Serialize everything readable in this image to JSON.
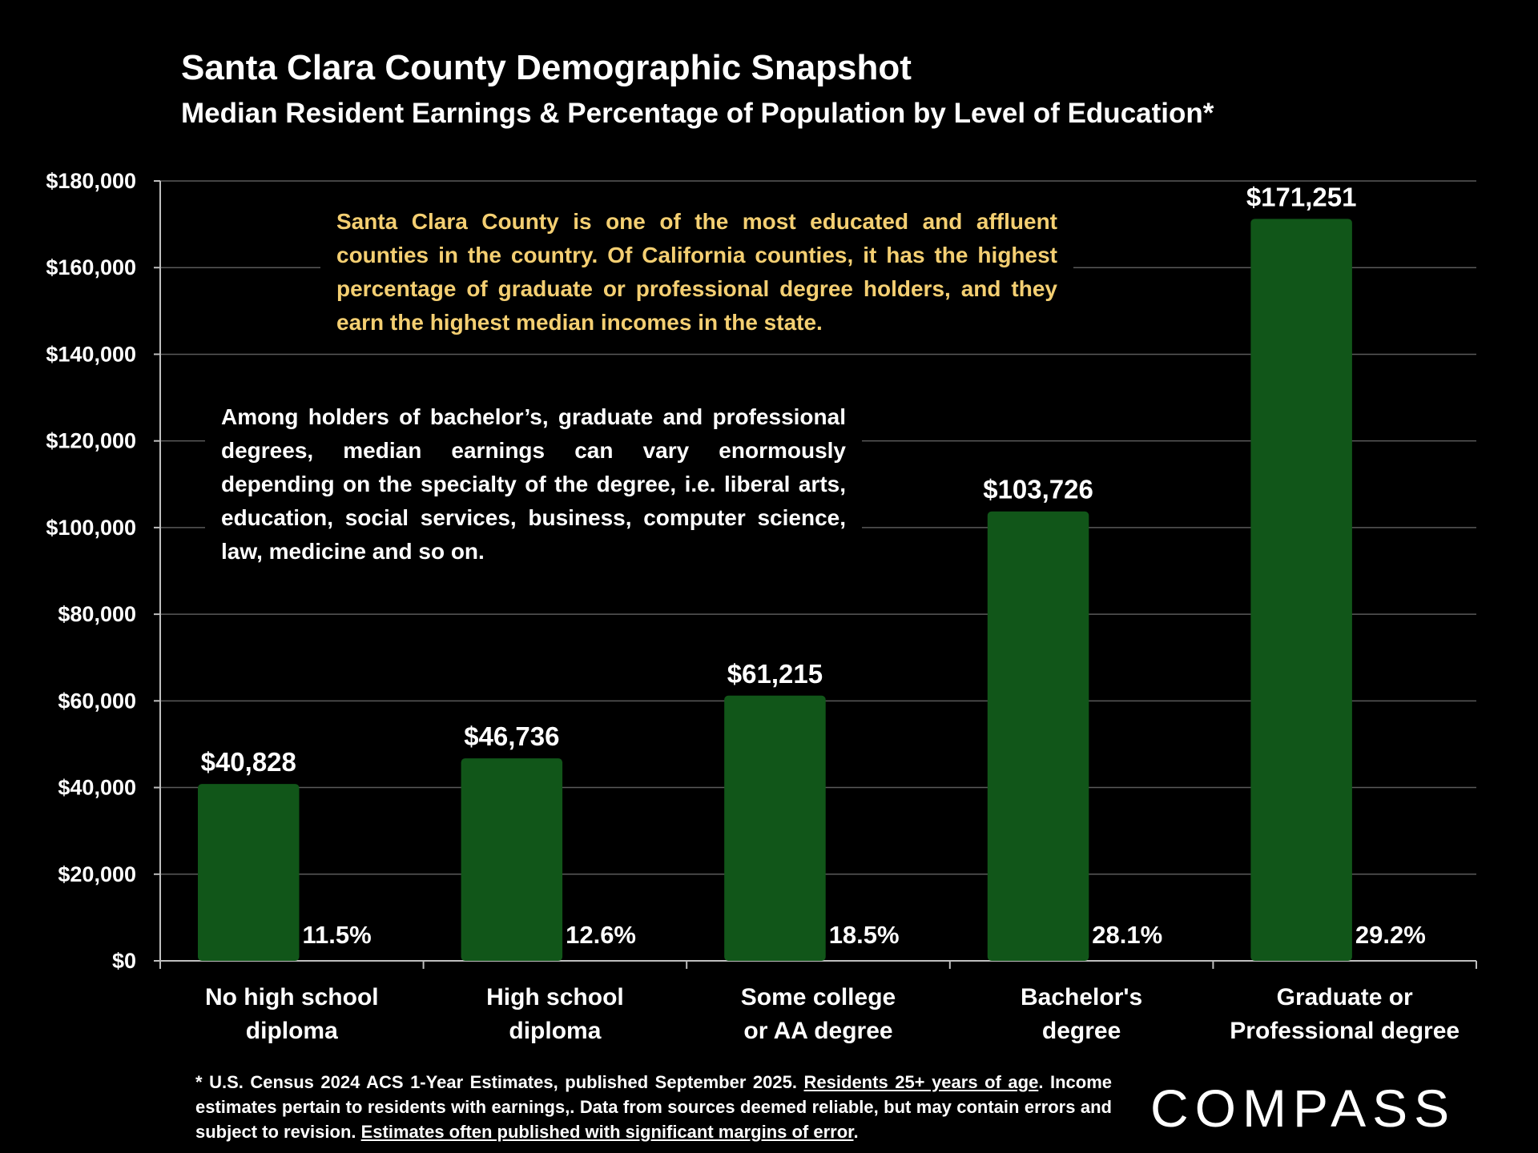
{
  "chart_data": {
    "type": "bar",
    "title": "Santa Clara County Demographic Snapshot",
    "subtitle": "Median Resident Earnings & Percentage of Population by Level of Education*",
    "categories": [
      [
        "No high school",
        "diploma"
      ],
      [
        "High school",
        "diploma"
      ],
      [
        "Some college",
        "or AA degree"
      ],
      [
        "Bachelor's",
        "degree"
      ],
      [
        "Graduate or",
        "Professional degree"
      ]
    ],
    "series": [
      {
        "name": "Median Resident Earnings",
        "values": [
          40828,
          46736,
          61215,
          103726,
          171251
        ],
        "labels": [
          "$40,828",
          "$46,736",
          "$61,215",
          "$103,726",
          "$171,251"
        ]
      },
      {
        "name": "Percentage of Population",
        "values": [
          11.5,
          12.6,
          18.5,
          28.1,
          29.2
        ],
        "labels": [
          "11.5%",
          "12.6%",
          "18.5%",
          "28.1%",
          "29.2%"
        ]
      }
    ],
    "y_ticks": [
      "$0",
      "$20,000",
      "$40,000",
      "$60,000",
      "$80,000",
      "$100,000",
      "$120,000",
      "$140,000",
      "$160,000",
      "$180,000"
    ],
    "ylim": [
      0,
      180000
    ],
    "y_step": 20000,
    "grid": true,
    "xlabel": "",
    "ylabel": "",
    "bar_color": "#115619",
    "grid_color": "#5a5a5a"
  },
  "annotations": {
    "box1": "Santa Clara County is one of the most educated and affluent counties in the country. Of California counties, it has the highest percentage of graduate or professional degree holders, and they earn the highest median incomes in the state.",
    "box2": "Among holders of bachelor’s, graduate and professional degrees, median earnings can vary enormously depending on the specialty of the degree, i.e. liberal arts, education, social services, business, computer science, law, medicine and so on."
  },
  "footnote": {
    "part1": "* U.S. Census 2024 ACS 1-Year Estimates, published September 2025.",
    "part2": "Residents 25+ years of age",
    "part3": ". Income estimates pertain to residents with earnings,. Data from sources deemed reliable, but may contain errors and subject to revision.",
    "part4": "Estimates often published with significant margins of error",
    "part5": "."
  },
  "logo": "COMPASS",
  "colors": {
    "background": "#000000",
    "bar": "#115619",
    "annotation_highlight": "#f4cf72",
    "text": "#ffffff"
  }
}
